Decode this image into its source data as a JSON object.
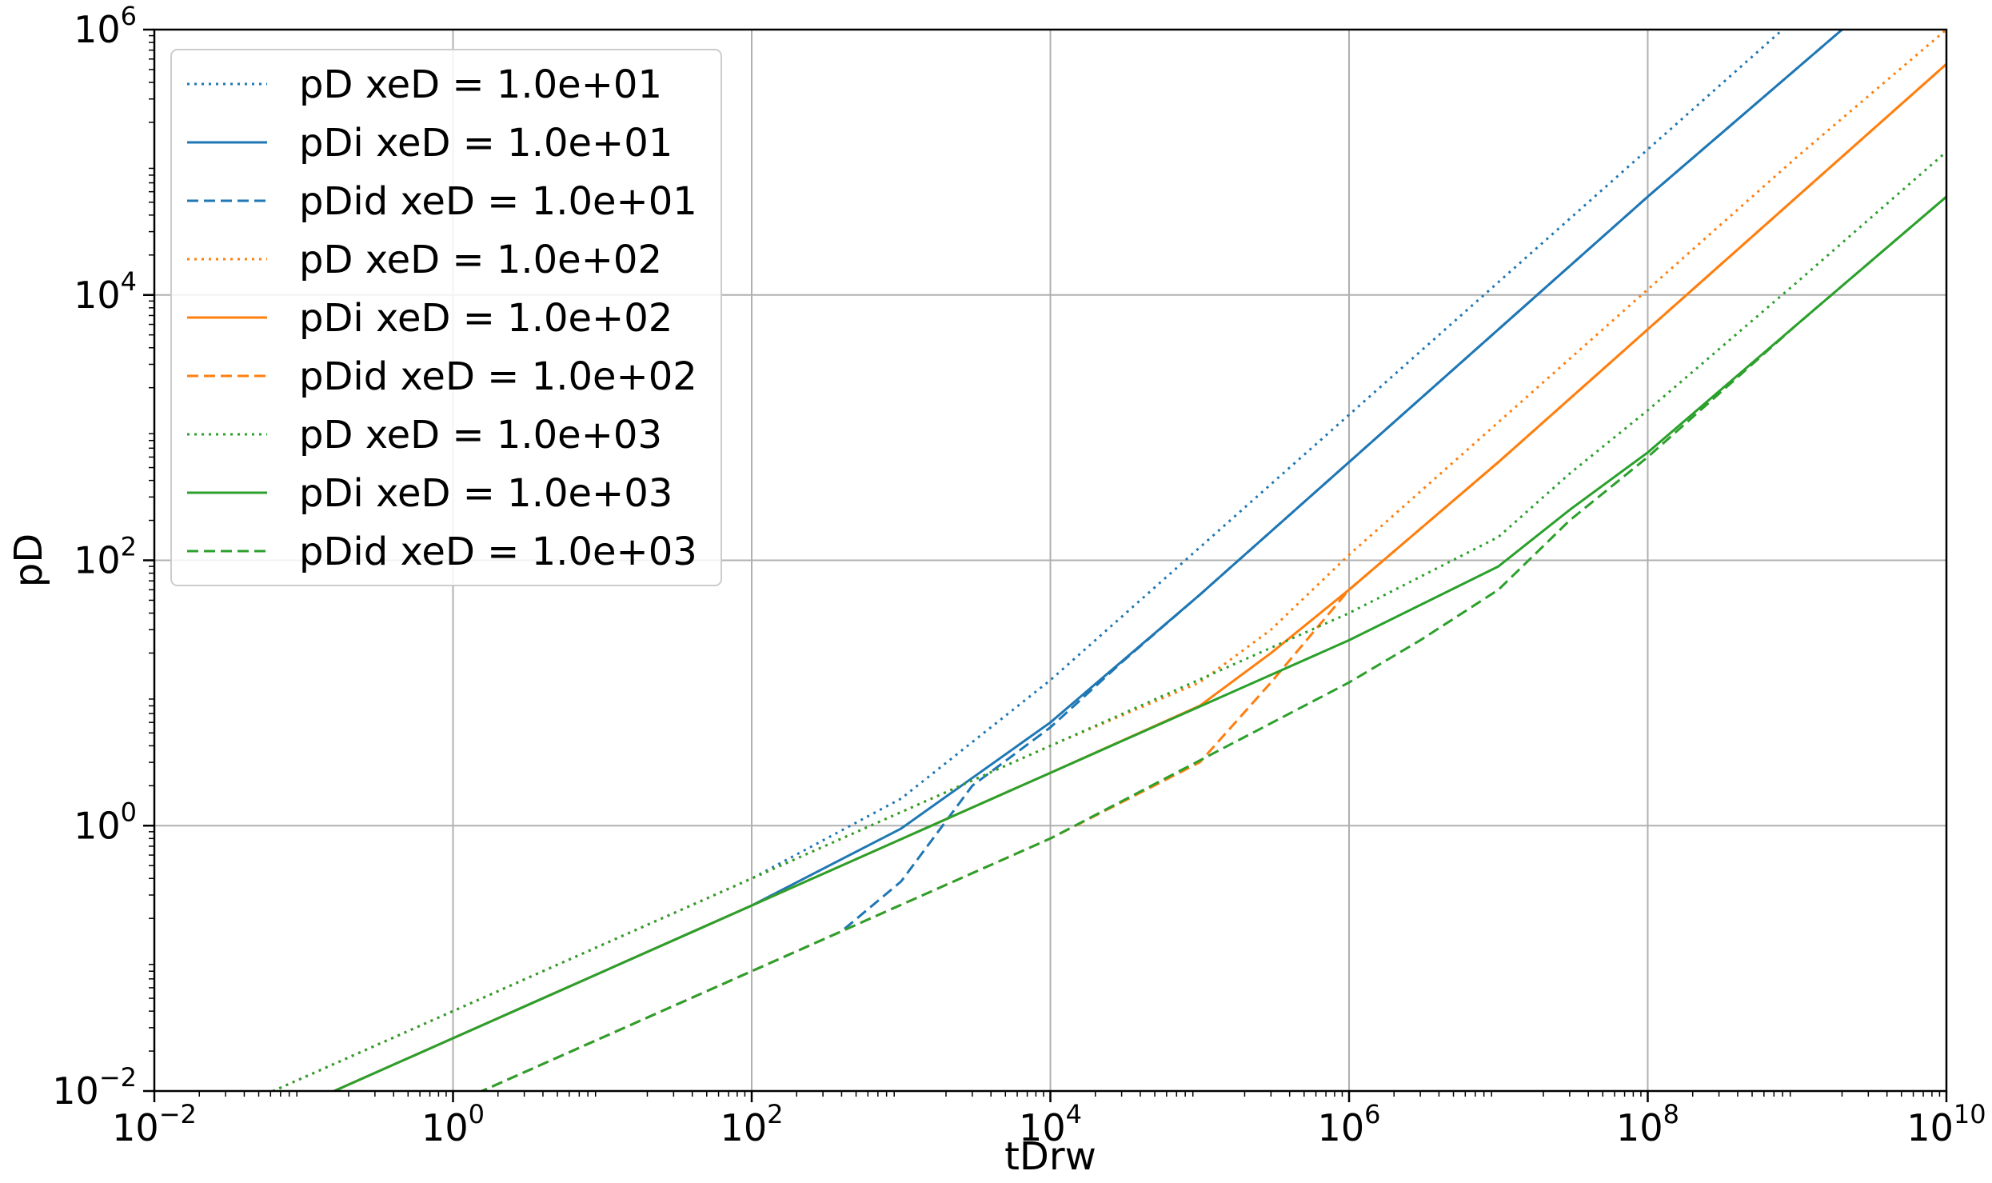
{
  "chart_data": {
    "type": "line",
    "title": "",
    "xlabel": "tDrw",
    "ylabel": "pD",
    "xscale": "log",
    "yscale": "log",
    "xlim": [
      0.01,
      10000000000
    ],
    "ylim": [
      0.01,
      1000000
    ],
    "grid": true,
    "legend_position": "upper-left",
    "x_ticks": [
      {
        "base": "10",
        "exp": "−2"
      },
      {
        "base": "10",
        "exp": "0"
      },
      {
        "base": "10",
        "exp": "2"
      },
      {
        "base": "10",
        "exp": "4"
      },
      {
        "base": "10",
        "exp": "6"
      },
      {
        "base": "10",
        "exp": "8"
      },
      {
        "base": "10",
        "exp": "10"
      }
    ],
    "y_ticks": [
      {
        "base": "10",
        "exp": "−2"
      },
      {
        "base": "10",
        "exp": "0"
      },
      {
        "base": "10",
        "exp": "2"
      },
      {
        "base": "10",
        "exp": "4"
      },
      {
        "base": "10",
        "exp": "6"
      }
    ],
    "series": [
      {
        "name": "pD xeD = 1.0e+01",
        "color": "#1f77b4",
        "style": "dotted",
        "x": [
          0.01,
          1,
          100,
          1000,
          10000,
          100000,
          1000000,
          10000000,
          100000000,
          1000000000
        ],
        "y": [
          0.004,
          0.04,
          0.4,
          1.6,
          12.5,
          125,
          1250,
          12500,
          125000,
          1250000
        ]
      },
      {
        "name": "pDi xeD = 1.0e+01",
        "color": "#1f77b4",
        "style": "solid",
        "x": [
          0.01,
          1,
          100,
          1000,
          10000,
          100000,
          1000000,
          10000000,
          100000000,
          2000000000
        ],
        "y": [
          0.0025,
          0.025,
          0.25,
          0.95,
          6,
          55,
          550,
          5500,
          55000,
          1000000
        ]
      },
      {
        "name": "pDid xeD = 1.0e+01",
        "color": "#1f77b4",
        "style": "dashed",
        "x": [
          0.01,
          1,
          100,
          400,
          1000,
          3000,
          10000,
          30000,
          100000,
          1000000,
          10000000,
          100000000,
          2000000000
        ],
        "y": [
          0.0008,
          0.008,
          0.08,
          0.16,
          0.38,
          2,
          5.5,
          17,
          55,
          550,
          5500,
          55000,
          1000000
        ]
      },
      {
        "name": "pD xeD = 1.0e+02",
        "color": "#ff7f0e",
        "style": "dotted",
        "x": [
          0.01,
          1,
          100,
          10000,
          100000,
          300000,
          1000000,
          10000000,
          100000000,
          1000000000,
          10000000000
        ],
        "y": [
          0.004,
          0.04,
          0.4,
          4,
          12,
          30,
          110,
          1100,
          11000,
          110000,
          1000000
        ]
      },
      {
        "name": "pDi xeD = 1.0e+02",
        "color": "#ff7f0e",
        "style": "solid",
        "x": [
          0.01,
          1,
          100,
          10000,
          100000,
          300000,
          1000000,
          10000000,
          100000000,
          1000000000,
          10000000000
        ],
        "y": [
          0.0025,
          0.025,
          0.25,
          2.5,
          8,
          20,
          60,
          550,
          5500,
          55000,
          550000
        ]
      },
      {
        "name": "pDid xeD = 1.0e+02",
        "color": "#ff7f0e",
        "style": "dashed",
        "x": [
          0.01,
          1,
          100,
          10000,
          30000,
          100000,
          300000,
          1000000,
          10000000,
          100000000,
          1000000000,
          10000000000
        ],
        "y": [
          0.0008,
          0.008,
          0.08,
          0.8,
          1.5,
          3,
          12,
          60,
          550,
          5500,
          55000,
          550000
        ]
      },
      {
        "name": "pD xeD = 1.0e+03",
        "color": "#2ca02c",
        "style": "dotted",
        "x": [
          0.01,
          1,
          100,
          10000,
          1000000,
          10000000,
          30000000,
          100000000,
          1000000000,
          10000000000
        ],
        "y": [
          0.004,
          0.04,
          0.4,
          4,
          40,
          150,
          450,
          1350,
          12500,
          120000
        ]
      },
      {
        "name": "pDi xeD = 1.0e+03",
        "color": "#2ca02c",
        "style": "solid",
        "x": [
          0.01,
          1,
          100,
          10000,
          1000000,
          10000000,
          30000000,
          100000000,
          1000000000,
          10000000000
        ],
        "y": [
          0.0025,
          0.025,
          0.25,
          2.5,
          25,
          90,
          240,
          650,
          6000,
          55000
        ]
      },
      {
        "name": "pDid xeD = 1.0e+03",
        "color": "#2ca02c",
        "style": "dashed",
        "x": [
          0.01,
          1,
          100,
          10000,
          1000000,
          3000000,
          10000000,
          30000000,
          100000000,
          1000000000,
          10000000000
        ],
        "y": [
          0.0008,
          0.008,
          0.08,
          0.8,
          12,
          25,
          60,
          200,
          600,
          6000,
          55000
        ]
      }
    ]
  }
}
